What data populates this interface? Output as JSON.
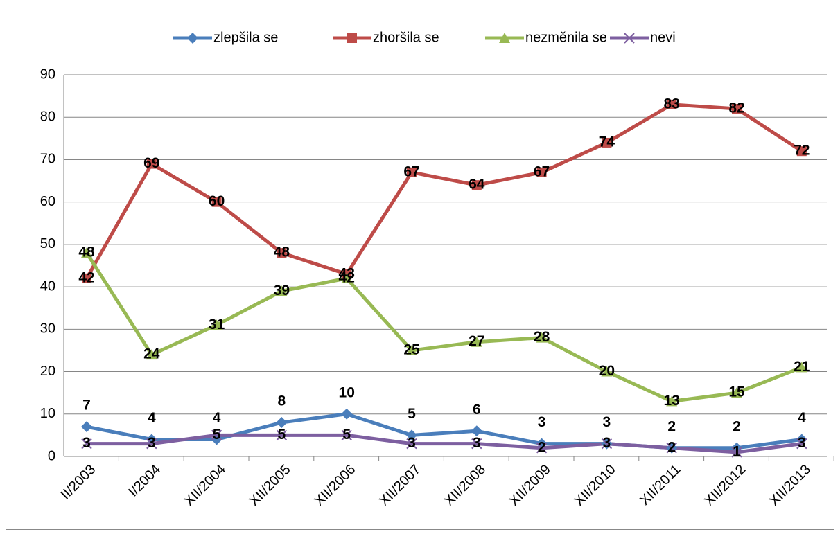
{
  "chart_data": {
    "type": "line",
    "categories": [
      "II/2003",
      "I/2004",
      "XII/2004",
      "XII/2005",
      "XII/2006",
      "XII/2007",
      "XII/2008",
      "XII/2009",
      "XII/2010",
      "XII/2011",
      "XII/2012",
      "XII/2013"
    ],
    "series": [
      {
        "name": "zlepšila se",
        "color": "#4a7ebb",
        "values": [
          7,
          4,
          4,
          8,
          10,
          5,
          6,
          3,
          3,
          2,
          2,
          4
        ]
      },
      {
        "name": "zhoršila se",
        "color": "#be4b48",
        "values": [
          42,
          69,
          60,
          48,
          43,
          67,
          64,
          67,
          74,
          83,
          82,
          72
        ]
      },
      {
        "name": "nezměnila se",
        "color": "#98b954",
        "values": [
          48,
          24,
          31,
          39,
          42,
          25,
          27,
          28,
          20,
          13,
          15,
          21
        ]
      },
      {
        "name": "nevi",
        "color": "#7d5fa0",
        "values": [
          3,
          3,
          5,
          5,
          5,
          3,
          3,
          2,
          3,
          2,
          1,
          3
        ]
      }
    ],
    "ylim": [
      0,
      90
    ],
    "yticks": [
      0,
      10,
      20,
      30,
      40,
      50,
      60,
      70,
      80,
      90
    ],
    "grid": true,
    "legend": "top"
  }
}
